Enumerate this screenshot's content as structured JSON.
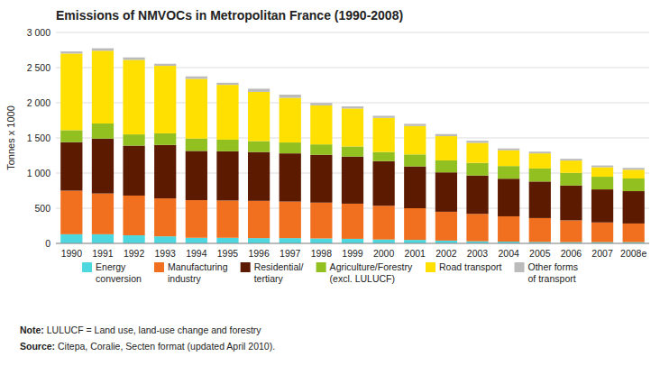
{
  "chart_data": {
    "type": "bar",
    "stacked": true,
    "grid": true,
    "legend": "bottom",
    "title": "Emissions of NMVOCs in Metropolitan France (1990-2008)",
    "ylabel": "Tonnes x 1000",
    "annotations": [
      "Note: LULUCF = Land use, land-use change and forestry",
      "Source: Citepa, Coralie, Secten format (updated April 2010)."
    ],
    "categories": [
      "1990",
      "1991",
      "1992",
      "1993",
      "1994",
      "1995",
      "1996",
      "1997",
      "1998",
      "1999",
      "2000",
      "2001",
      "2002",
      "2003",
      "2004",
      "2005",
      "2006",
      "2007",
      "2008e"
    ],
    "series": [
      {
        "name": "Energy\nconversion",
        "color": "#4DD8E0",
        "values": [
          130,
          130,
          115,
          100,
          80,
          80,
          75,
          75,
          70,
          65,
          55,
          50,
          40,
          30,
          25,
          20,
          18,
          18,
          18
        ]
      },
      {
        "name": "Manufacturing\nindustry",
        "color": "#F07020",
        "values": [
          620,
          580,
          565,
          540,
          535,
          530,
          530,
          520,
          510,
          500,
          480,
          450,
          410,
          390,
          360,
          340,
          310,
          280,
          265
        ]
      },
      {
        "name": "Residential/\ntertiary",
        "color": "#5C1A00",
        "values": [
          690,
          780,
          710,
          760,
          700,
          700,
          695,
          685,
          680,
          670,
          635,
          595,
          560,
          545,
          535,
          520,
          495,
          470,
          460
        ]
      },
      {
        "name": "Agriculture/Forestry\n(excl. LULUCF)",
        "color": "#92C020",
        "values": [
          170,
          215,
          160,
          165,
          175,
          165,
          155,
          155,
          148,
          143,
          130,
          170,
          170,
          180,
          180,
          185,
          180,
          180,
          180
        ]
      },
      {
        "name": "Road transport",
        "color": "#FFE000",
        "values": [
          1090,
          1035,
          1060,
          960,
          850,
          780,
          700,
          635,
          555,
          540,
          485,
          405,
          345,
          285,
          225,
          215,
          175,
          135,
          125
        ]
      },
      {
        "name": "Other forms\nof transport",
        "color": "#BBBBBB",
        "values": [
          30,
          35,
          35,
          30,
          35,
          30,
          45,
          45,
          35,
          30,
          30,
          30,
          30,
          30,
          25,
          25,
          25,
          25,
          25
        ]
      }
    ],
    "ylim": [
      0,
      3000
    ],
    "yticks": [
      0,
      500,
      {
        "value": 1000,
        "label": "1 000"
      },
      {
        "value": 1500,
        "label": "1 500"
      },
      {
        "value": 2000,
        "label": "2 000"
      },
      {
        "value": 2500,
        "label": "2 500"
      },
      {
        "value": 3000,
        "label": "3 000"
      }
    ]
  }
}
